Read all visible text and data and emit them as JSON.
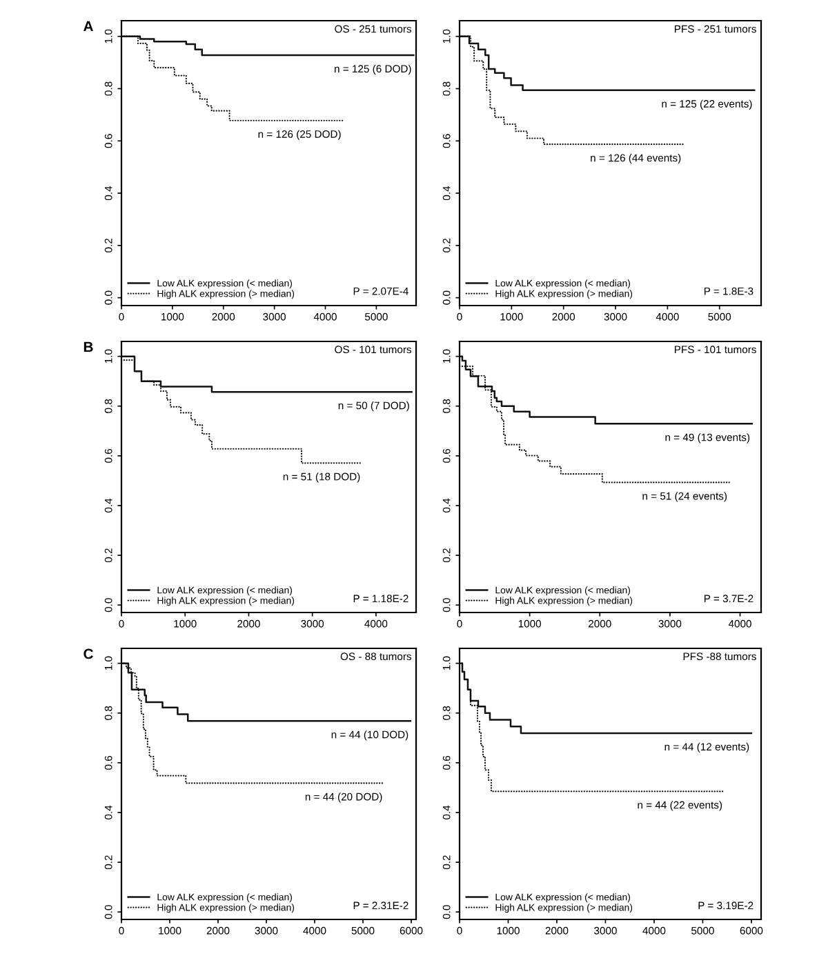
{
  "chart_data": [
    {
      "type": "step",
      "title": "OS - 251 tumors",
      "xlim": [
        0,
        5780
      ],
      "ylim": [
        -0.03,
        1.06
      ],
      "xticks": [
        0,
        1000,
        2000,
        3000,
        4000,
        5000
      ],
      "yticks": [
        {
          "value": 0,
          "label": "0.0"
        },
        {
          "value": 0.2,
          "label": "0.2"
        },
        {
          "value": 0.4,
          "label": "0.4"
        },
        {
          "value": 0.6,
          "label": "0.6"
        },
        {
          "value": 0.8,
          "label": "0.8"
        },
        {
          "value": 1,
          "label": "1.0"
        }
      ],
      "grid": false,
      "legend": "bottom left",
      "marker": "none",
      "series": [
        {
          "name": "Low ALK expression (< median)",
          "color": "#111111",
          "line_style": "solid",
          "x": [
            0,
            365,
            640,
            1270,
            1445,
            1580,
            5730
          ],
          "values": [
            1.0,
            0.99,
            0.98,
            0.97,
            0.95,
            0.928,
            0.928
          ]
        },
        {
          "name": "High ALK expression (> median)",
          "color": "#111111",
          "line_style": "dotted",
          "x": [
            0,
            324,
            500,
            550,
            640,
            1040,
            1270,
            1400,
            1540,
            1680,
            1770,
            2120,
            4350
          ],
          "values": [
            1.0,
            0.973,
            0.947,
            0.907,
            0.88,
            0.85,
            0.82,
            0.787,
            0.76,
            0.734,
            0.715,
            0.678,
            0.678
          ]
        }
      ],
      "annotations": [
        "A",
        {
          "text": "n = 125 (6 DOD)",
          "x": 5730,
          "y": 0.928
        },
        {
          "text": "n = 126 (25 DOD)",
          "x": 4350,
          "y": 0.678
        },
        "P = 2.07E-4"
      ]
    },
    {
      "type": "step",
      "title": "PFS - 251 tumors",
      "xlim": [
        0,
        5800
      ],
      "ylim": [
        -0.03,
        1.06
      ],
      "xticks": [
        0,
        1000,
        2000,
        3000,
        4000,
        5000
      ],
      "yticks": [
        {
          "value": 0,
          "label": "0.0"
        },
        {
          "value": 0.2,
          "label": "0.2"
        },
        {
          "value": 0.4,
          "label": "0.4"
        },
        {
          "value": 0.6,
          "label": "0.6"
        },
        {
          "value": 0.8,
          "label": "0.8"
        },
        {
          "value": 1,
          "label": "1.0"
        }
      ],
      "grid": false,
      "legend": "bottom left",
      "marker": "none",
      "series": [
        {
          "name": "Low ALK expression (< median)",
          "color": "#111111",
          "line_style": "solid",
          "x": [
            0,
            187,
            360,
            495,
            560,
            680,
            855,
            990,
            1215,
            5670
          ],
          "values": [
            1.0,
            0.973,
            0.95,
            0.928,
            0.875,
            0.86,
            0.84,
            0.813,
            0.794,
            0.794
          ]
        },
        {
          "name": "High ALK expression (> median)",
          "color": "#111111",
          "line_style": "dotted",
          "x": [
            0,
            214,
            280,
            455,
            520,
            590,
            680,
            855,
            1080,
            1300,
            1620,
            4300
          ],
          "values": [
            1.0,
            0.96,
            0.906,
            0.875,
            0.794,
            0.724,
            0.69,
            0.664,
            0.637,
            0.61,
            0.587,
            0.587
          ]
        }
      ],
      "annotations": [
        {
          "text": "n = 125 (22 events)",
          "x": 5670,
          "y": 0.794
        },
        {
          "text": "n = 126 (44 events)",
          "x": 4300,
          "y": 0.587
        },
        "P = 1.8E-3"
      ]
    },
    {
      "type": "step",
      "title": "OS - 101 tumors",
      "xlim": [
        0,
        4630
      ],
      "ylim": [
        -0.03,
        1.06
      ],
      "xticks": [
        0,
        1000,
        2000,
        3000,
        4000
      ],
      "yticks": [
        {
          "value": 0,
          "label": "0.0"
        },
        {
          "value": 0.2,
          "label": "0.2"
        },
        {
          "value": 0.4,
          "label": "0.4"
        },
        {
          "value": 0.6,
          "label": "0.6"
        },
        {
          "value": 0.8,
          "label": "0.8"
        },
        {
          "value": 1,
          "label": "1.0"
        }
      ],
      "grid": false,
      "legend": "bottom left",
      "marker": "none",
      "series": [
        {
          "name": "Low ALK expression (< median)",
          "color": "#111111",
          "line_style": "solid",
          "x": [
            0,
            206,
            314,
            618,
            1420,
            4560
          ],
          "values": [
            1.0,
            0.94,
            0.9,
            0.878,
            0.857,
            0.857
          ]
        },
        {
          "name": "High ALK expression (> median)",
          "color": "#111111",
          "line_style": "dotted",
          "x": [
            0,
            206,
            314,
            510,
            618,
            715,
            770,
            932,
            1095,
            1160,
            1270,
            1380,
            1420,
            2830,
            3785
          ],
          "values": [
            0.985,
            0.94,
            0.9,
            0.885,
            0.86,
            0.825,
            0.797,
            0.773,
            0.745,
            0.724,
            0.688,
            0.661,
            0.628,
            0.571,
            0.571
          ]
        }
      ],
      "annotations": [
        "B",
        {
          "text": "n = 50 (7 DOD)",
          "x": 4560,
          "y": 0.857
        },
        {
          "text": "n = 51 (18 DOD)",
          "x": 3785,
          "y": 0.571
        },
        "P = 1.18E-2"
      ]
    },
    {
      "type": "step",
      "title": "PFS - 101 tumors",
      "xlim": [
        0,
        4300
      ],
      "ylim": [
        -0.03,
        1.06
      ],
      "xticks": [
        0,
        1000,
        2000,
        3000,
        4000
      ],
      "yticks": [
        {
          "value": 0,
          "label": "0.0"
        },
        {
          "value": 0.2,
          "label": "0.2"
        },
        {
          "value": 0.4,
          "label": "0.4"
        },
        {
          "value": 0.6,
          "label": "0.6"
        },
        {
          "value": 0.8,
          "label": "0.8"
        },
        {
          "value": 1,
          "label": "1.0"
        }
      ],
      "grid": false,
      "legend": "bottom left",
      "marker": "none",
      "series": [
        {
          "name": "Low ALK expression (< median)",
          "color": "#111111",
          "line_style": "solid",
          "x": [
            0,
            39,
            88,
            157,
            265,
            462,
            500,
            530,
            600,
            775,
            1000,
            1935,
            4170
          ],
          "values": [
            1.0,
            0.982,
            0.947,
            0.92,
            0.879,
            0.86,
            0.833,
            0.819,
            0.8,
            0.778,
            0.756,
            0.729,
            0.729
          ]
        },
        {
          "name": "High ALK expression (> median)",
          "color": "#111111",
          "line_style": "dotted",
          "x": [
            0,
            187,
            365,
            452,
            530,
            600,
            630,
            650,
            855,
            945,
            1120,
            1290,
            1445,
            2035,
            3845
          ],
          "values": [
            0.96,
            0.922,
            0.865,
            0.797,
            0.778,
            0.745,
            0.683,
            0.645,
            0.623,
            0.601,
            0.579,
            0.556,
            0.527,
            0.493,
            0.493
          ]
        }
      ],
      "annotations": [
        {
          "text": "n = 49 (13 events)",
          "x": 4170,
          "y": 0.729
        },
        {
          "text": "n = 51 (24 events)",
          "x": 3845,
          "y": 0.493
        },
        "P = 3.7E-2"
      ]
    },
    {
      "type": "step",
      "title": "OS - 88 tumors",
      "xlim": [
        0,
        6100
      ],
      "ylim": [
        -0.03,
        1.06
      ],
      "xticks": [
        0,
        1000,
        2000,
        3000,
        4000,
        5000,
        6000
      ],
      "yticks": [
        {
          "value": 0,
          "label": "0.0"
        },
        {
          "value": 0.2,
          "label": "0.2"
        },
        {
          "value": 0.4,
          "label": "0.4"
        },
        {
          "value": 0.6,
          "label": "0.6"
        },
        {
          "value": 0.8,
          "label": "0.8"
        },
        {
          "value": 1,
          "label": "1.0"
        }
      ],
      "grid": false,
      "legend": "bottom left",
      "marker": "none",
      "series": [
        {
          "name": "Low ALK expression (< median)",
          "color": "#111111",
          "line_style": "solid",
          "x": [
            0,
            142,
            213,
            482,
            510,
            850,
            1163,
            1375,
            5985
          ],
          "values": [
            1.0,
            0.962,
            0.894,
            0.871,
            0.844,
            0.822,
            0.795,
            0.768,
            0.768
          ]
        },
        {
          "name": "High ALK expression (> median)",
          "color": "#111111",
          "line_style": "dotted",
          "x": [
            0,
            100,
            200,
            280,
            312,
            355,
            410,
            455,
            500,
            540,
            580,
            666,
            737,
            1333,
            5445
          ],
          "values": [
            1.0,
            0.981,
            0.962,
            0.949,
            0.899,
            0.853,
            0.798,
            0.735,
            0.698,
            0.662,
            0.625,
            0.571,
            0.548,
            0.518,
            0.518
          ]
        }
      ],
      "annotations": [
        "C",
        {
          "text": "n = 44 (10 DOD)",
          "x": 5985,
          "y": 0.768
        },
        {
          "text": "n = 44 (20 DOD)",
          "x": 5445,
          "y": 0.518
        },
        "P = 2.31E-2"
      ]
    },
    {
      "type": "step",
      "title": "PFS -88 tumors",
      "xlim": [
        0,
        6200
      ],
      "ylim": [
        -0.03,
        1.06
      ],
      "xticks": [
        0,
        1000,
        2000,
        3000,
        4000,
        5000,
        6000
      ],
      "yticks": [
        {
          "value": 0,
          "label": "0.0"
        },
        {
          "value": 0.2,
          "label": "0.2"
        },
        {
          "value": 0.4,
          "label": "0.4"
        },
        {
          "value": 0.6,
          "label": "0.6"
        },
        {
          "value": 0.8,
          "label": "0.8"
        },
        {
          "value": 1,
          "label": "1.0"
        }
      ],
      "grid": false,
      "legend": "bottom left",
      "marker": "none",
      "series": [
        {
          "name": "Low ALK expression (< median)",
          "color": "#111111",
          "line_style": "solid",
          "x": [
            0,
            57,
            99,
            170,
            227,
            383,
            525,
            624,
            1050,
            1262,
            6000
          ],
          "values": [
            1.0,
            0.966,
            0.935,
            0.894,
            0.849,
            0.826,
            0.8,
            0.773,
            0.746,
            0.719,
            0.719
          ]
        },
        {
          "name": "High ALK expression (> median)",
          "color": "#111111",
          "line_style": "dotted",
          "x": [
            0,
            57,
            99,
            170,
            227,
            369,
            411,
            440,
            482,
            525,
            596,
            652,
            5445
          ],
          "values": [
            1.0,
            0.966,
            0.935,
            0.894,
            0.83,
            0.767,
            0.719,
            0.67,
            0.625,
            0.571,
            0.53,
            0.485,
            0.485
          ]
        }
      ],
      "annotations": [
        {
          "text": "n = 44 (12 events)",
          "x": 6000,
          "y": 0.719
        },
        {
          "text": "n = 44 (22 events)",
          "x": 5445,
          "y": 0.485
        },
        "P = 3.19E-2"
      ]
    }
  ]
}
